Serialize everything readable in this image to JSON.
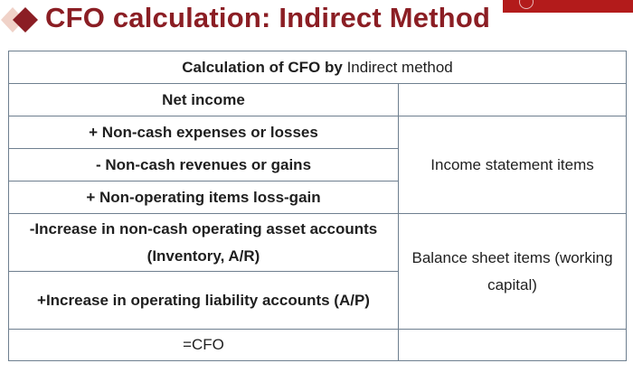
{
  "slide": {
    "title": "CFO calculation: Indirect Method",
    "accent_color": "#8b1e24",
    "logo_color": "#b31b1b"
  },
  "table": {
    "header_bold": "Calculation of CFO by",
    "header_normal": "Indirect method",
    "rows": {
      "net_income": "Net income",
      "non_cash_expenses": "+ Non-cash expenses or losses",
      "non_cash_revenues": "- Non-cash revenues or gains",
      "non_operating": "+ Non-operating items loss-gain",
      "asset_increase": "-Increase in non-cash operating asset accounts (Inventory, A/R)",
      "liability_increase": "+Increase in operating liability accounts (A/P)",
      "cfo": "=CFO"
    },
    "groups": {
      "income_statement": "Income statement items",
      "balance_sheet": "Balance sheet items (working capital)"
    }
  }
}
